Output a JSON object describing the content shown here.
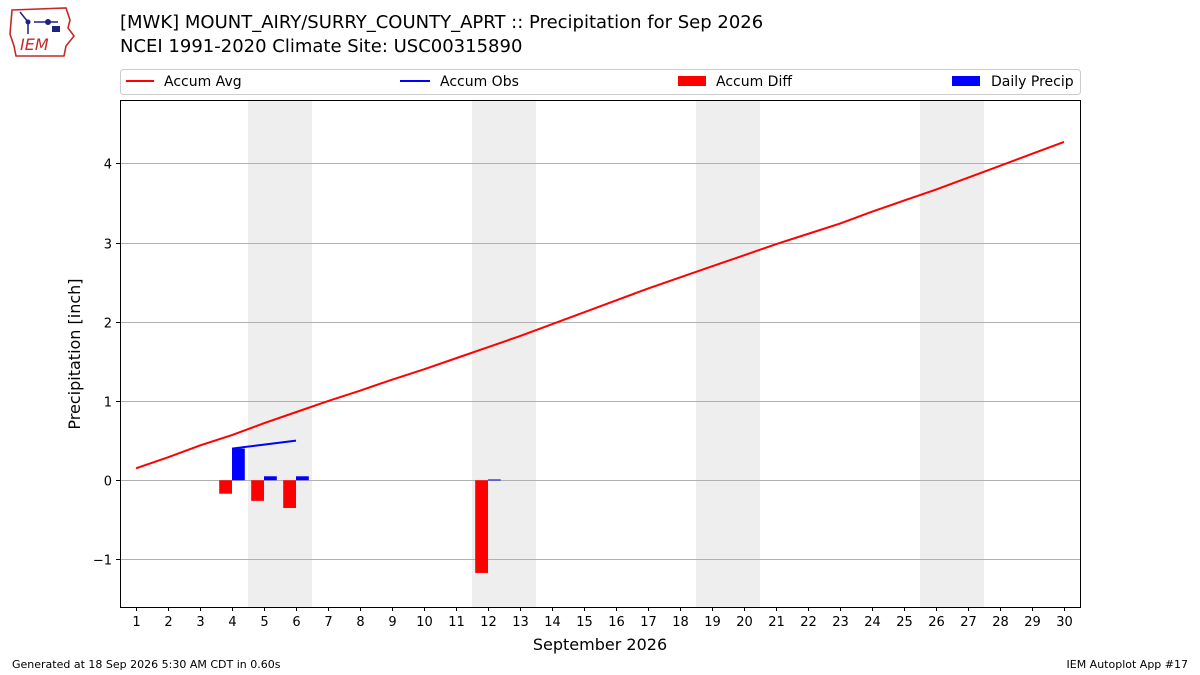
{
  "header": {
    "title_line1": "[MWK] MOUNT_AIRY/SURRY_COUNTY_APRT :: Precipitation for Sep 2026",
    "title_line2": "NCEI 1991-2020 Climate Site: USC00315890"
  },
  "logo": {
    "text": "IEM",
    "icon": "iem-iowa-logo-icon"
  },
  "footer": {
    "generated": "Generated at 18 Sep 2026 5:30 AM CDT in 0.60s",
    "app": "IEM Autoplot App #17"
  },
  "colors": {
    "avg": "#ff0000",
    "obs": "#0000ff",
    "diff": "#ff0000",
    "daily": "#0000ff",
    "weekend_band": "#eeeeee",
    "grid": "#b0b0b0"
  },
  "chart_data": {
    "type": "bar",
    "xlabel": "September 2026",
    "ylabel": "Precipitation [inch]",
    "xlim": [
      0.5,
      30.5
    ],
    "ylim": [
      -1.6,
      4.8
    ],
    "grid": true,
    "legend_position": "top",
    "x_ticks": [
      1,
      2,
      3,
      4,
      5,
      6,
      7,
      8,
      9,
      10,
      11,
      12,
      13,
      14,
      15,
      16,
      17,
      18,
      19,
      20,
      21,
      22,
      23,
      24,
      25,
      26,
      27,
      28,
      29,
      30
    ],
    "y_ticks": [
      -1,
      0,
      1,
      2,
      3,
      4
    ],
    "y_tick_labels": [
      "−1",
      "0",
      "1",
      "2",
      "3",
      "4"
    ],
    "weekend_bands": [
      [
        4.5,
        6.5
      ],
      [
        11.5,
        13.5
      ],
      [
        18.5,
        20.5
      ],
      [
        25.5,
        27.5
      ]
    ],
    "legend": [
      "Accum Avg",
      "Accum Obs",
      "Accum Diff",
      "Daily Precip"
    ],
    "series": [
      {
        "name": "Accum Avg",
        "kind": "line",
        "x": [
          1,
          2,
          3,
          4,
          5,
          6,
          7,
          8,
          9,
          10,
          11,
          12,
          13,
          14,
          15,
          16,
          17,
          18,
          19,
          20,
          21,
          22,
          23,
          24,
          25,
          26,
          27,
          28,
          29,
          30
        ],
        "values": [
          0.15,
          0.29,
          0.44,
          0.57,
          0.72,
          0.86,
          1.0,
          1.13,
          1.27,
          1.4,
          1.54,
          1.68,
          1.82,
          1.97,
          2.12,
          2.27,
          2.42,
          2.56,
          2.7,
          2.84,
          2.98,
          3.11,
          3.24,
          3.39,
          3.53,
          3.67,
          3.82,
          3.97,
          4.12,
          4.27
        ]
      },
      {
        "name": "Accum Obs",
        "kind": "line",
        "x": [
          4,
          5,
          6
        ],
        "values": [
          0.4,
          0.45,
          0.5
        ]
      },
      {
        "name": "Accum Diff",
        "kind": "bar",
        "x": [
          4,
          5,
          6,
          12
        ],
        "values": [
          -0.17,
          -0.26,
          -0.35,
          -1.17
        ]
      },
      {
        "name": "Daily Precip",
        "kind": "bar",
        "x": [
          4,
          5,
          6,
          12
        ],
        "values": [
          0.4,
          0.05,
          0.05,
          0.01
        ]
      }
    ]
  }
}
